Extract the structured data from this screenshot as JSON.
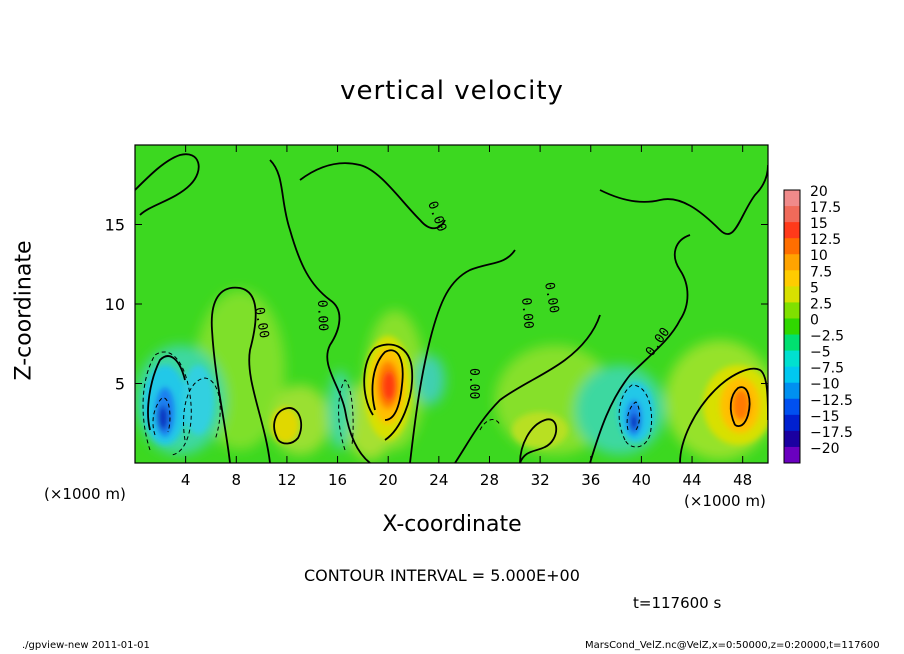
{
  "chart_data": {
    "type": "heatmap",
    "title": "vertical velocity",
    "xlabel": "X-coordinate",
    "ylabel": "Z-coordinate",
    "x_unit_label": "(×1000 m)",
    "xlim": [
      0,
      50
    ],
    "ylim": [
      0,
      20
    ],
    "x_ticks": [
      4,
      8,
      12,
      16,
      20,
      24,
      28,
      32,
      36,
      40,
      44,
      48
    ],
    "y_ticks": [
      5,
      10,
      15
    ],
    "colorbar": {
      "levels": [
        "20",
        "17.5",
        "15",
        "12.5",
        "10",
        "7.5",
        "5",
        "2.5",
        "0",
        "−2.5",
        "−5",
        "−7.5",
        "−10",
        "−12.5",
        "−15",
        "−17.5",
        "−20"
      ],
      "colors": [
        "#f08a8a",
        "#f06a5a",
        "#ff3a1a",
        "#ff6e00",
        "#ffa300",
        "#ffcc00",
        "#d8e000",
        "#80e000",
        "#30d800",
        "#00e070",
        "#00e0d0",
        "#00c8f0",
        "#0090f0",
        "#0050f0",
        "#0020d0",
        "#1a00a0",
        "#6a00c0"
      ]
    },
    "features": [
      {
        "type": "updraft",
        "x": 20,
        "z": 4.5,
        "peak": 12.5
      },
      {
        "type": "updraft",
        "x": 48,
        "z": 3.5,
        "peak": 12
      },
      {
        "type": "updraft",
        "x": 32,
        "z": 2.0,
        "peak": 6
      },
      {
        "type": "updraft",
        "x": 12,
        "z": 2.2,
        "peak": 6
      },
      {
        "type": "downdraft",
        "x": 2,
        "z": 3.0,
        "peak": -15
      },
      {
        "type": "downdraft",
        "x": 39.5,
        "z": 2.8,
        "peak": -14
      },
      {
        "type": "downdraft",
        "x": 4,
        "z": 3.5,
        "peak": -7
      },
      {
        "type": "downdraft",
        "x": 16,
        "z": 2.5,
        "peak": -5
      }
    ],
    "contour_labels": [
      "0.00",
      "0.00",
      "0.00",
      "0.00",
      "0.00",
      "0.00",
      "0.00"
    ]
  },
  "contour_interval": "CONTOUR INTERVAL = 5.000E+00",
  "time_label": "t=117600 s",
  "footer_left": "./gpview-new  2011-01-01",
  "footer_right": "MarsCond_VelZ.nc@VelZ,x=0:50000,z=0:20000,t=117600"
}
